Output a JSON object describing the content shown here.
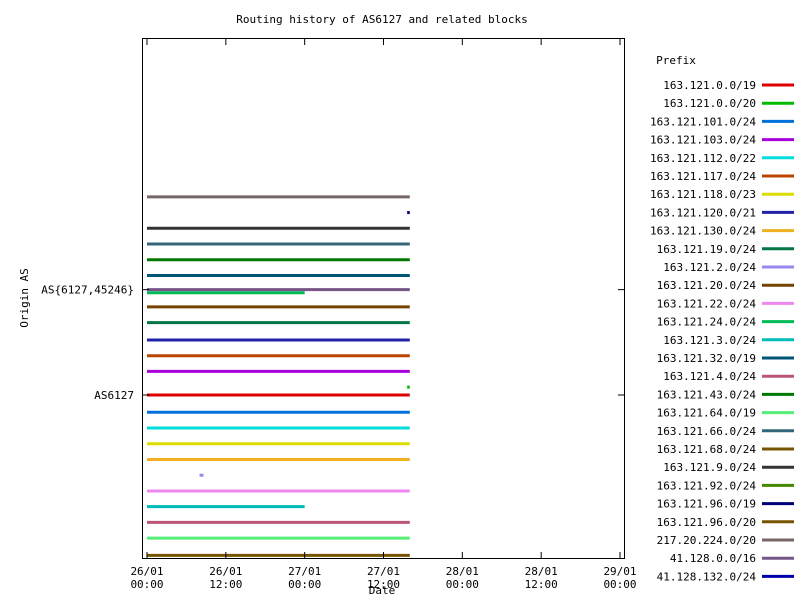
{
  "chart_data": {
    "type": "timeline",
    "title": "Routing history of AS6127 and related blocks",
    "xlabel": "Date",
    "ylabel": "Origin AS",
    "legend_title": "Prefix",
    "legend_position": "right",
    "grid": false,
    "x_unit": "hours since 26/01 00:00",
    "xlim": [
      0,
      72
    ],
    "x_ticks": [
      {
        "value": 0,
        "line1": "26/01",
        "line2": "00:00"
      },
      {
        "value": 12,
        "line1": "26/01",
        "line2": "12:00"
      },
      {
        "value": 24,
        "line1": "27/01",
        "line2": "00:00"
      },
      {
        "value": 36,
        "line1": "27/01",
        "line2": "12:00"
      },
      {
        "value": 48,
        "line1": "28/01",
        "line2": "00:00"
      },
      {
        "value": 60,
        "line1": "28/01",
        "line2": "12:00"
      },
      {
        "value": 72,
        "line1": "29/01",
        "line2": "00:00"
      }
    ],
    "ylim": [
      0,
      33
    ],
    "y_labels": [
      {
        "value": 17,
        "label": "AS{6127,45246}"
      },
      {
        "value": 10.3,
        "label": "AS6127"
      }
    ],
    "series": [
      {
        "name": "163.121.0.0/19",
        "color": "#dd0000",
        "segments": [
          {
            "y": 10.3,
            "x0": 0,
            "x1": 40
          }
        ]
      },
      {
        "name": "163.121.0.0/20",
        "color": "#00bb00",
        "segments": [
          {
            "y": 10.8,
            "x0": 39.6,
            "x1": 40
          }
        ]
      },
      {
        "name": "163.121.101.0/24",
        "color": "#0070dd",
        "segments": [
          {
            "y": 9.2,
            "x0": 0,
            "x1": 40
          }
        ]
      },
      {
        "name": "163.121.103.0/24",
        "color": "#aa00dd",
        "segments": [
          {
            "y": 11.8,
            "x0": 0,
            "x1": 40
          }
        ]
      },
      {
        "name": "163.121.112.0/22",
        "color": "#00dddd",
        "segments": [
          {
            "y": 8.2,
            "x0": 0,
            "x1": 40
          }
        ]
      },
      {
        "name": "163.121.117.0/24",
        "color": "#bb4400",
        "segments": [
          {
            "y": 12.8,
            "x0": 0,
            "x1": 40
          }
        ]
      },
      {
        "name": "163.121.118.0/23",
        "color": "#dddd00",
        "segments": [
          {
            "y": 7.2,
            "x0": 0,
            "x1": 40
          }
        ]
      },
      {
        "name": "163.121.120.0/21",
        "color": "#2222aa",
        "segments": [
          {
            "y": 13.8,
            "x0": 0,
            "x1": 40
          }
        ]
      },
      {
        "name": "163.121.130.0/24",
        "color": "#f0b020",
        "segments": [
          {
            "y": 6.2,
            "x0": 0,
            "x1": 40
          }
        ]
      },
      {
        "name": "163.121.19.0/24",
        "color": "#007744",
        "segments": [
          {
            "y": 14.9,
            "x0": 0,
            "x1": 40
          }
        ]
      },
      {
        "name": "163.121.2.0/24",
        "color": "#9988ee",
        "segments": [
          {
            "y": 5.2,
            "x0": 8,
            "x1": 8.6
          }
        ]
      },
      {
        "name": "163.121.20.0/24",
        "color": "#774400",
        "segments": [
          {
            "y": 15.9,
            "x0": 0,
            "x1": 40
          }
        ]
      },
      {
        "name": "163.121.22.0/24",
        "color": "#ee88ee",
        "segments": [
          {
            "y": 4.2,
            "x0": 0,
            "x1": 40
          }
        ]
      },
      {
        "name": "163.121.24.0/24",
        "color": "#00bb55",
        "segments": [
          {
            "y": 16.8,
            "x0": 0,
            "x1": 24
          }
        ]
      },
      {
        "name": "163.121.3.0/24",
        "color": "#00bbbb",
        "segments": [
          {
            "y": 3.2,
            "x0": 0,
            "x1": 24
          }
        ]
      },
      {
        "name": "163.121.32.0/19",
        "color": "#005577",
        "segments": [
          {
            "y": 17.9,
            "x0": 0,
            "x1": 40
          }
        ]
      },
      {
        "name": "163.121.4.0/24",
        "color": "#bb5577",
        "segments": [
          {
            "y": 2.2,
            "x0": 0,
            "x1": 40
          }
        ]
      },
      {
        "name": "163.121.43.0/24",
        "color": "#007700",
        "segments": [
          {
            "y": 18.9,
            "x0": 0,
            "x1": 40
          }
        ]
      },
      {
        "name": "163.121.64.0/19",
        "color": "#55ee77",
        "segments": [
          {
            "y": 1.2,
            "x0": 0,
            "x1": 40
          }
        ]
      },
      {
        "name": "163.121.66.0/24",
        "color": "#336677",
        "segments": [
          {
            "y": 19.9,
            "x0": 0,
            "x1": 40
          }
        ]
      },
      {
        "name": "163.121.68.0/24",
        "color": "#775500",
        "segments": [
          {
            "y": 0.1,
            "x0": 0,
            "x1": 40
          }
        ]
      },
      {
        "name": "163.121.9.0/24",
        "color": "#333333",
        "segments": [
          {
            "y": 20.9,
            "x0": 0,
            "x1": 40
          }
        ]
      },
      {
        "name": "163.121.92.0/24",
        "color": "#448800",
        "segments": []
      },
      {
        "name": "163.121.96.0/19",
        "color": "#000077",
        "segments": [
          {
            "y": 21.9,
            "x0": 39.6,
            "x1": 40
          }
        ]
      },
      {
        "name": "163.121.96.0/20",
        "color": "#775500",
        "segments": []
      },
      {
        "name": "217.20.224.0/20",
        "color": "#776666",
        "segments": [
          {
            "y": 22.9,
            "x0": 0,
            "x1": 40
          }
        ]
      },
      {
        "name": "41.128.0.0/16",
        "color": "#775588",
        "segments": [
          {
            "y": 17,
            "x0": 0,
            "x1": 40
          }
        ]
      },
      {
        "name": "41.128.132.0/24",
        "color": "#0000aa",
        "segments": []
      }
    ]
  }
}
